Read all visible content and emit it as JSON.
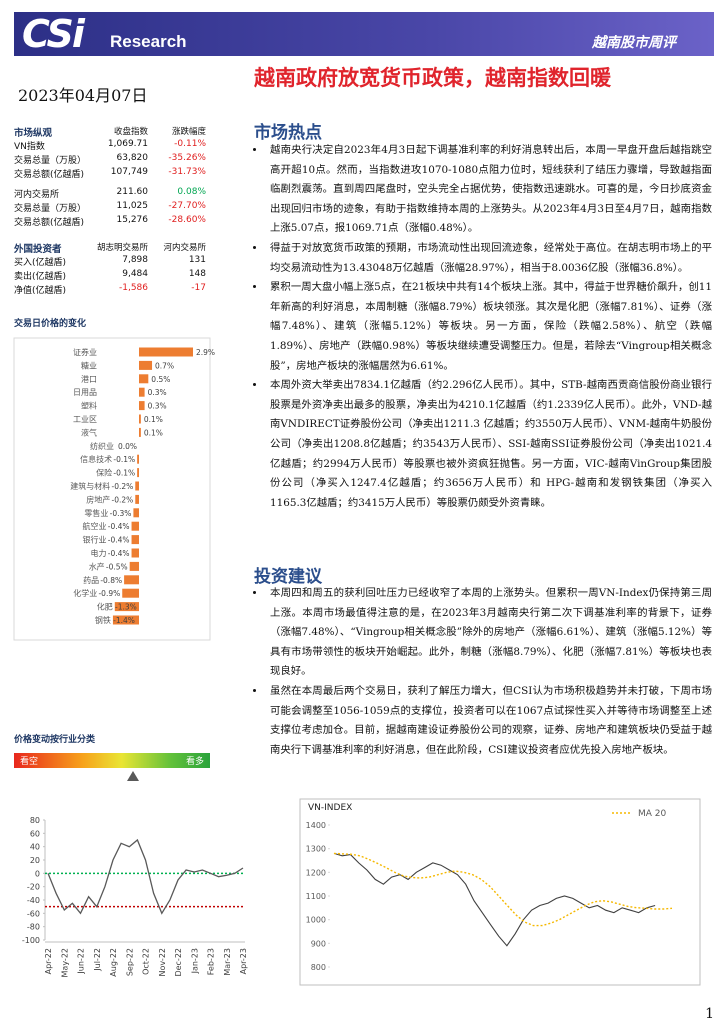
{
  "header": {
    "logo": "CSi",
    "brand": "Research",
    "report": "越南股市周评"
  },
  "title": "越南政府放宽货币政策，越南指数回暖",
  "date": "2023年04月07日",
  "market_table": {
    "header": [
      "市场纵观",
      "收盘指数",
      "涨跌幅度"
    ],
    "groups": [
      [
        [
          "VN指数",
          "1,069.71",
          "-0.11%"
        ],
        [
          "交易总量（万股）",
          "63,820",
          "-35.26%"
        ],
        [
          "交易总额(亿越盾)",
          "107,749",
          "-31.73%"
        ]
      ],
      [
        [
          "河内交易所",
          "211.60",
          "0.08%"
        ],
        [
          "交易总量（万股）",
          "11,025",
          "-27.70%"
        ],
        [
          "交易总额(亿越盾)",
          "15,276",
          "-28.60%"
        ]
      ]
    ],
    "change_colors": {
      "up": "#00a651",
      "down": "#e02020"
    }
  },
  "foreign_table": {
    "header": [
      "外国投资者",
      "胡志明交易所",
      "河内交易所"
    ],
    "rows": [
      [
        "买入(亿越盾)",
        "7,898",
        "131"
      ],
      [
        "卖出(亿越盾)",
        "9,484",
        "148"
      ],
      [
        "净值(亿越盾)",
        "-1,586",
        "-17"
      ]
    ]
  },
  "sector_chart": {
    "type": "bar",
    "title": "交易日价格的变化",
    "color": "#ed7d31",
    "categories": [
      "证券业",
      "糖业",
      "港口",
      "日用品",
      "塑料",
      "工业区",
      "液气",
      "纺织业",
      "信息技术",
      "保险",
      "建筑与材料",
      "房地产",
      "零售业",
      "航空业",
      "银行业",
      "电力",
      "水产",
      "药品",
      "化学业",
      "化肥",
      "钢铁"
    ],
    "values": [
      2.9,
      0.7,
      0.5,
      0.3,
      0.3,
      0.1,
      0.1,
      0.0,
      -0.1,
      -0.1,
      -0.2,
      -0.2,
      -0.3,
      -0.4,
      -0.4,
      -0.4,
      -0.5,
      -0.8,
      -0.9,
      -1.3,
      -1.4
    ],
    "value_labels": [
      "2.9%",
      "0.7%",
      "0.5%",
      "0.3%",
      "0.3%",
      "0.1%",
      "0.1%",
      "0.0%",
      "-0.1%",
      "-0.1%",
      "-0.2%",
      "-0.2%",
      "-0.3%",
      "-0.4%",
      "-0.4%",
      "-0.4%",
      "-0.5%",
      "-0.8%",
      "-0.9%",
      "-1.3%",
      "-1.4%"
    ]
  },
  "sentiment": {
    "title": "价格变动按行业分类",
    "bear": "看空",
    "bull": "看多"
  },
  "oscillator_chart": {
    "type": "line",
    "color": "#595959",
    "categories": [
      "Apr-22",
      null,
      "May-22",
      null,
      "Jun-22",
      null,
      "Jul-22",
      null,
      "Aug-22",
      null,
      "Sep-22",
      null,
      "Oct-22",
      null,
      "Nov-22",
      null,
      "Dec-22",
      null,
      "Jan-23",
      null,
      "Feb-23",
      null,
      "Mar-23",
      null,
      "Apr-23"
    ],
    "values": [
      0,
      -30,
      -55,
      -45,
      -60,
      -35,
      -50,
      -20,
      20,
      45,
      40,
      50,
      20,
      -30,
      -60,
      -40,
      -10,
      5,
      2,
      5,
      0,
      -5,
      -3,
      0,
      8
    ],
    "ylim": [
      -100,
      80
    ],
    "yticks": [
      -100,
      -80,
      -60,
      -40,
      -20,
      0,
      20,
      40,
      60,
      80
    ],
    "reference_lines": [
      {
        "value": 0,
        "color": "#00b050"
      },
      {
        "value": -50,
        "color": "#c00000"
      }
    ]
  },
  "index_chart": {
    "type": "line",
    "title": "VN-INDEX",
    "ylim": [
      800,
      1400
    ],
    "yticks": [
      800,
      900,
      1000,
      1100,
      1200,
      1300,
      1400
    ],
    "series": [
      {
        "color": "#404040",
        "values": [
          1280,
          1270,
          1275,
          1240,
          1210,
          1170,
          1150,
          1180,
          1190,
          1170,
          1200,
          1220,
          1240,
          1230,
          1210,
          1190,
          1150,
          1080,
          1030,
          980,
          930,
          890,
          940,
          1000,
          1040,
          1060,
          1070,
          1090,
          1100,
          1090,
          1070,
          1050,
          1060,
          1040,
          1030,
          1050,
          1040,
          1030,
          1050,
          1060
        ]
      },
      {
        "name": "MA 20",
        "color": "#f5b800",
        "values": [
          1280,
          1278,
          1276,
          1270,
          1255,
          1238,
          1220,
          1200,
          1185,
          1178,
          1176,
          1180,
          1190,
          1200,
          1205,
          1200,
          1190,
          1170,
          1140,
          1100,
          1060,
          1020,
          990,
          975,
          975,
          985,
          1000,
          1020,
          1040,
          1060,
          1075,
          1080,
          1075,
          1065,
          1055,
          1050,
          1048,
          1045,
          1045,
          1048
        ]
      }
    ]
  },
  "sections": [
    {
      "heading": "市场热点",
      "bullets": [
        "越南央行决定自2023年4月3日起下调基准利率的利好消息转出后，本周一早盘开盘后越指跳空高开超10点。然而，当指数进攻1070-1080点阻力位时，短线获利了结压力骤增，导致越指面临剧烈震荡。直到周四尾盘时，空头完全占据优势，使指数迅速跳水。可喜的是，今日抄底资金出现回归市场的迹象，有助于指数维持本周的上涨势头。从2023年4月3日至4月7日，越南指数上涨5.07点，报1069.71点（涨幅0.48%）。",
        "得益于对放宽货币政策的预期，市场流动性出现回流迹象，经常处于高位。在胡志明市场上的平均交易流动性为13.43048万亿越盾（涨幅28.97%），相当于8.0036亿股（涨幅36.8%）。",
        "累积一周大盘小幅上涨5点，在21板块中共有14个板块上涨。其中，得益于世界糖价飙升，创11年新高的利好消息，本周制糖（涨幅8.79%）板块领涨。其次是化肥（涨幅7.81%）、证券（涨幅7.48%）、建筑（涨幅5.12%）等板块。另一方面，保险（跌幅2.58%）、航空（跌幅1.89%）、房地产（跌幅0.98%）等板块继续遭受调整压力。但是，若除去“Vingroup相关概念股”，房地产板块的涨幅居然为6.61%。",
        "本周外资大举卖出7834.1亿越盾（约2.296亿人民币）。其中，STB-越南西贡商信股份商业银行股票是外资净卖出最多的股票，净卖出为4210.1亿越盾（约1.2339亿人民币）。此外，VND-越南VNDIRECT证券股份公司（净卖出1211.3 亿越盾；约3550万人民币）、VNM-越南牛奶股份公司（净卖出1208.8亿越盾；约3543万人民币）、SSI-越南SSI证券股份公司（净卖出1021.4亿越盾；约2994万人民币）等股票也被外资疯狂抛售。另一方面，VIC-越南VinGroup集团股份公司（净买入1247.4亿越盾；约3656万人民币）和 HPG-越南和发钢铁集团（净买入1165.3亿越盾；约3415万人民币）等股票仍颇受外资青睐。"
      ]
    },
    {
      "heading": "投资建议",
      "bullets": [
        "本周四和周五的获利回吐压力已经收窄了本周的上涨势头。但累积一周VN-Index仍保持第三周上涨。本周市场最值得注意的是，在2023年3月越南央行第二次下调基准利率的背景下，证券（涨幅7.48%）、“Vingroup相关概念股”除外的房地产（涨幅6.61%）、建筑（涨幅5.12%）等具有市场带领性的板块开始崛起。此外，制糖（涨幅8.79%）、化肥（涨幅7.81%）等板块也表现良好。",
        "虽然在本周最后两个交易日，获利了解压力增大，但CSI认为市场积极趋势并未打破，下周市场可能会调整至1056-1059点的支撑位，投资者可以在1067点试探性买入并等待市场调整至上述支撑位考虑加仓。目前，据越南建设证券股份公司的观察，证券、房地产和建筑板块仍受益于越南央行下调基准利率的利好消息，但在此阶段，CSI建议投资者应优先投入房地产板块。"
      ]
    }
  ],
  "page_number": "1"
}
